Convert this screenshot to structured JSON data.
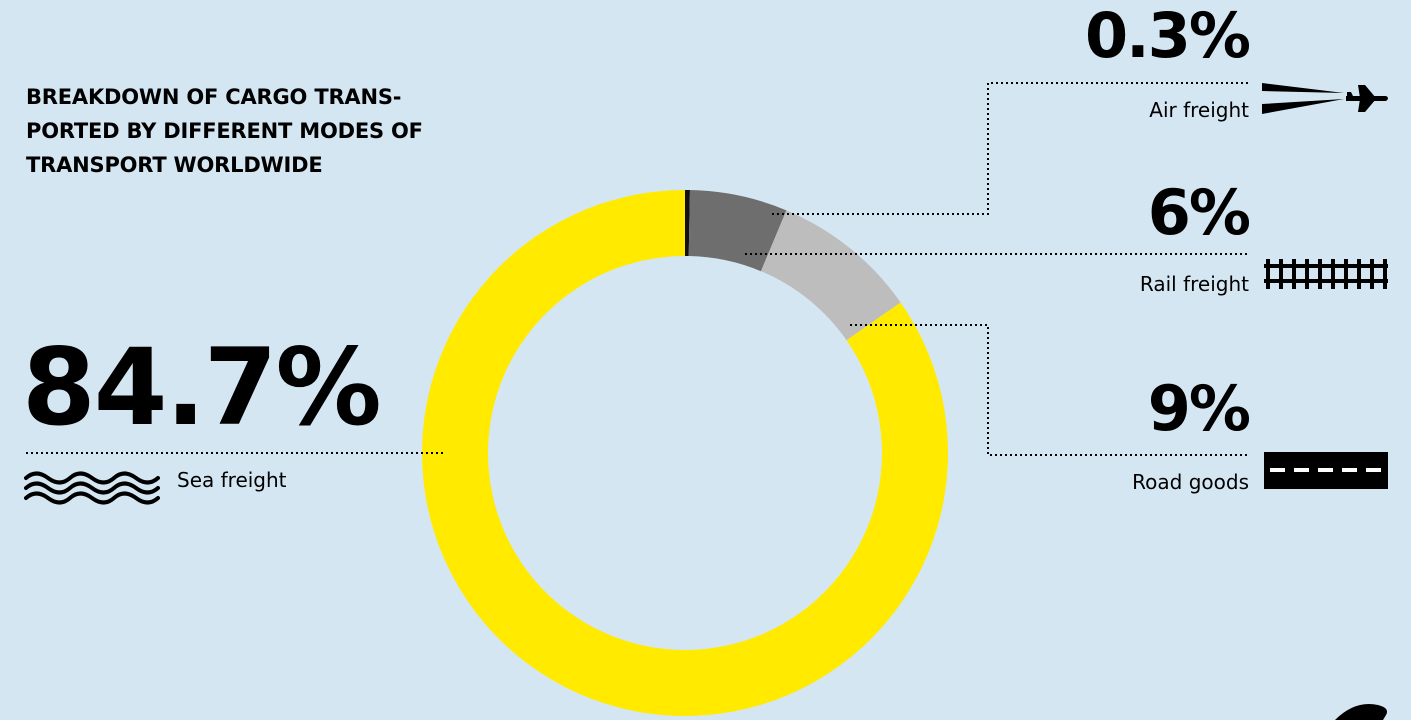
{
  "chart_data": {
    "type": "pie",
    "style": "donut",
    "title": "BREAKDOWN OF CARGO TRANS-\nPORTED BY DIFFERENT MODES OF\nTRANSPORT WORLDWIDE",
    "series": [
      {
        "name": "Air freight",
        "value": 0.3,
        "display": "0.3%",
        "color": "#111111",
        "icon": "plane-icon"
      },
      {
        "name": "Rail freight",
        "value": 6,
        "display": "6%",
        "color": "#6e6e6e",
        "icon": "rail-track-icon"
      },
      {
        "name": "Road goods",
        "value": 9,
        "display": "9%",
        "color": "#bdbdbd",
        "icon": "road-icon"
      },
      {
        "name": "Sea freight",
        "value": 84.7,
        "display": "84.7%",
        "color": "#ffea00",
        "icon": "waves-icon"
      }
    ],
    "units": "%"
  },
  "colors": {
    "background": "#d5e6f3",
    "text": "#000000"
  }
}
